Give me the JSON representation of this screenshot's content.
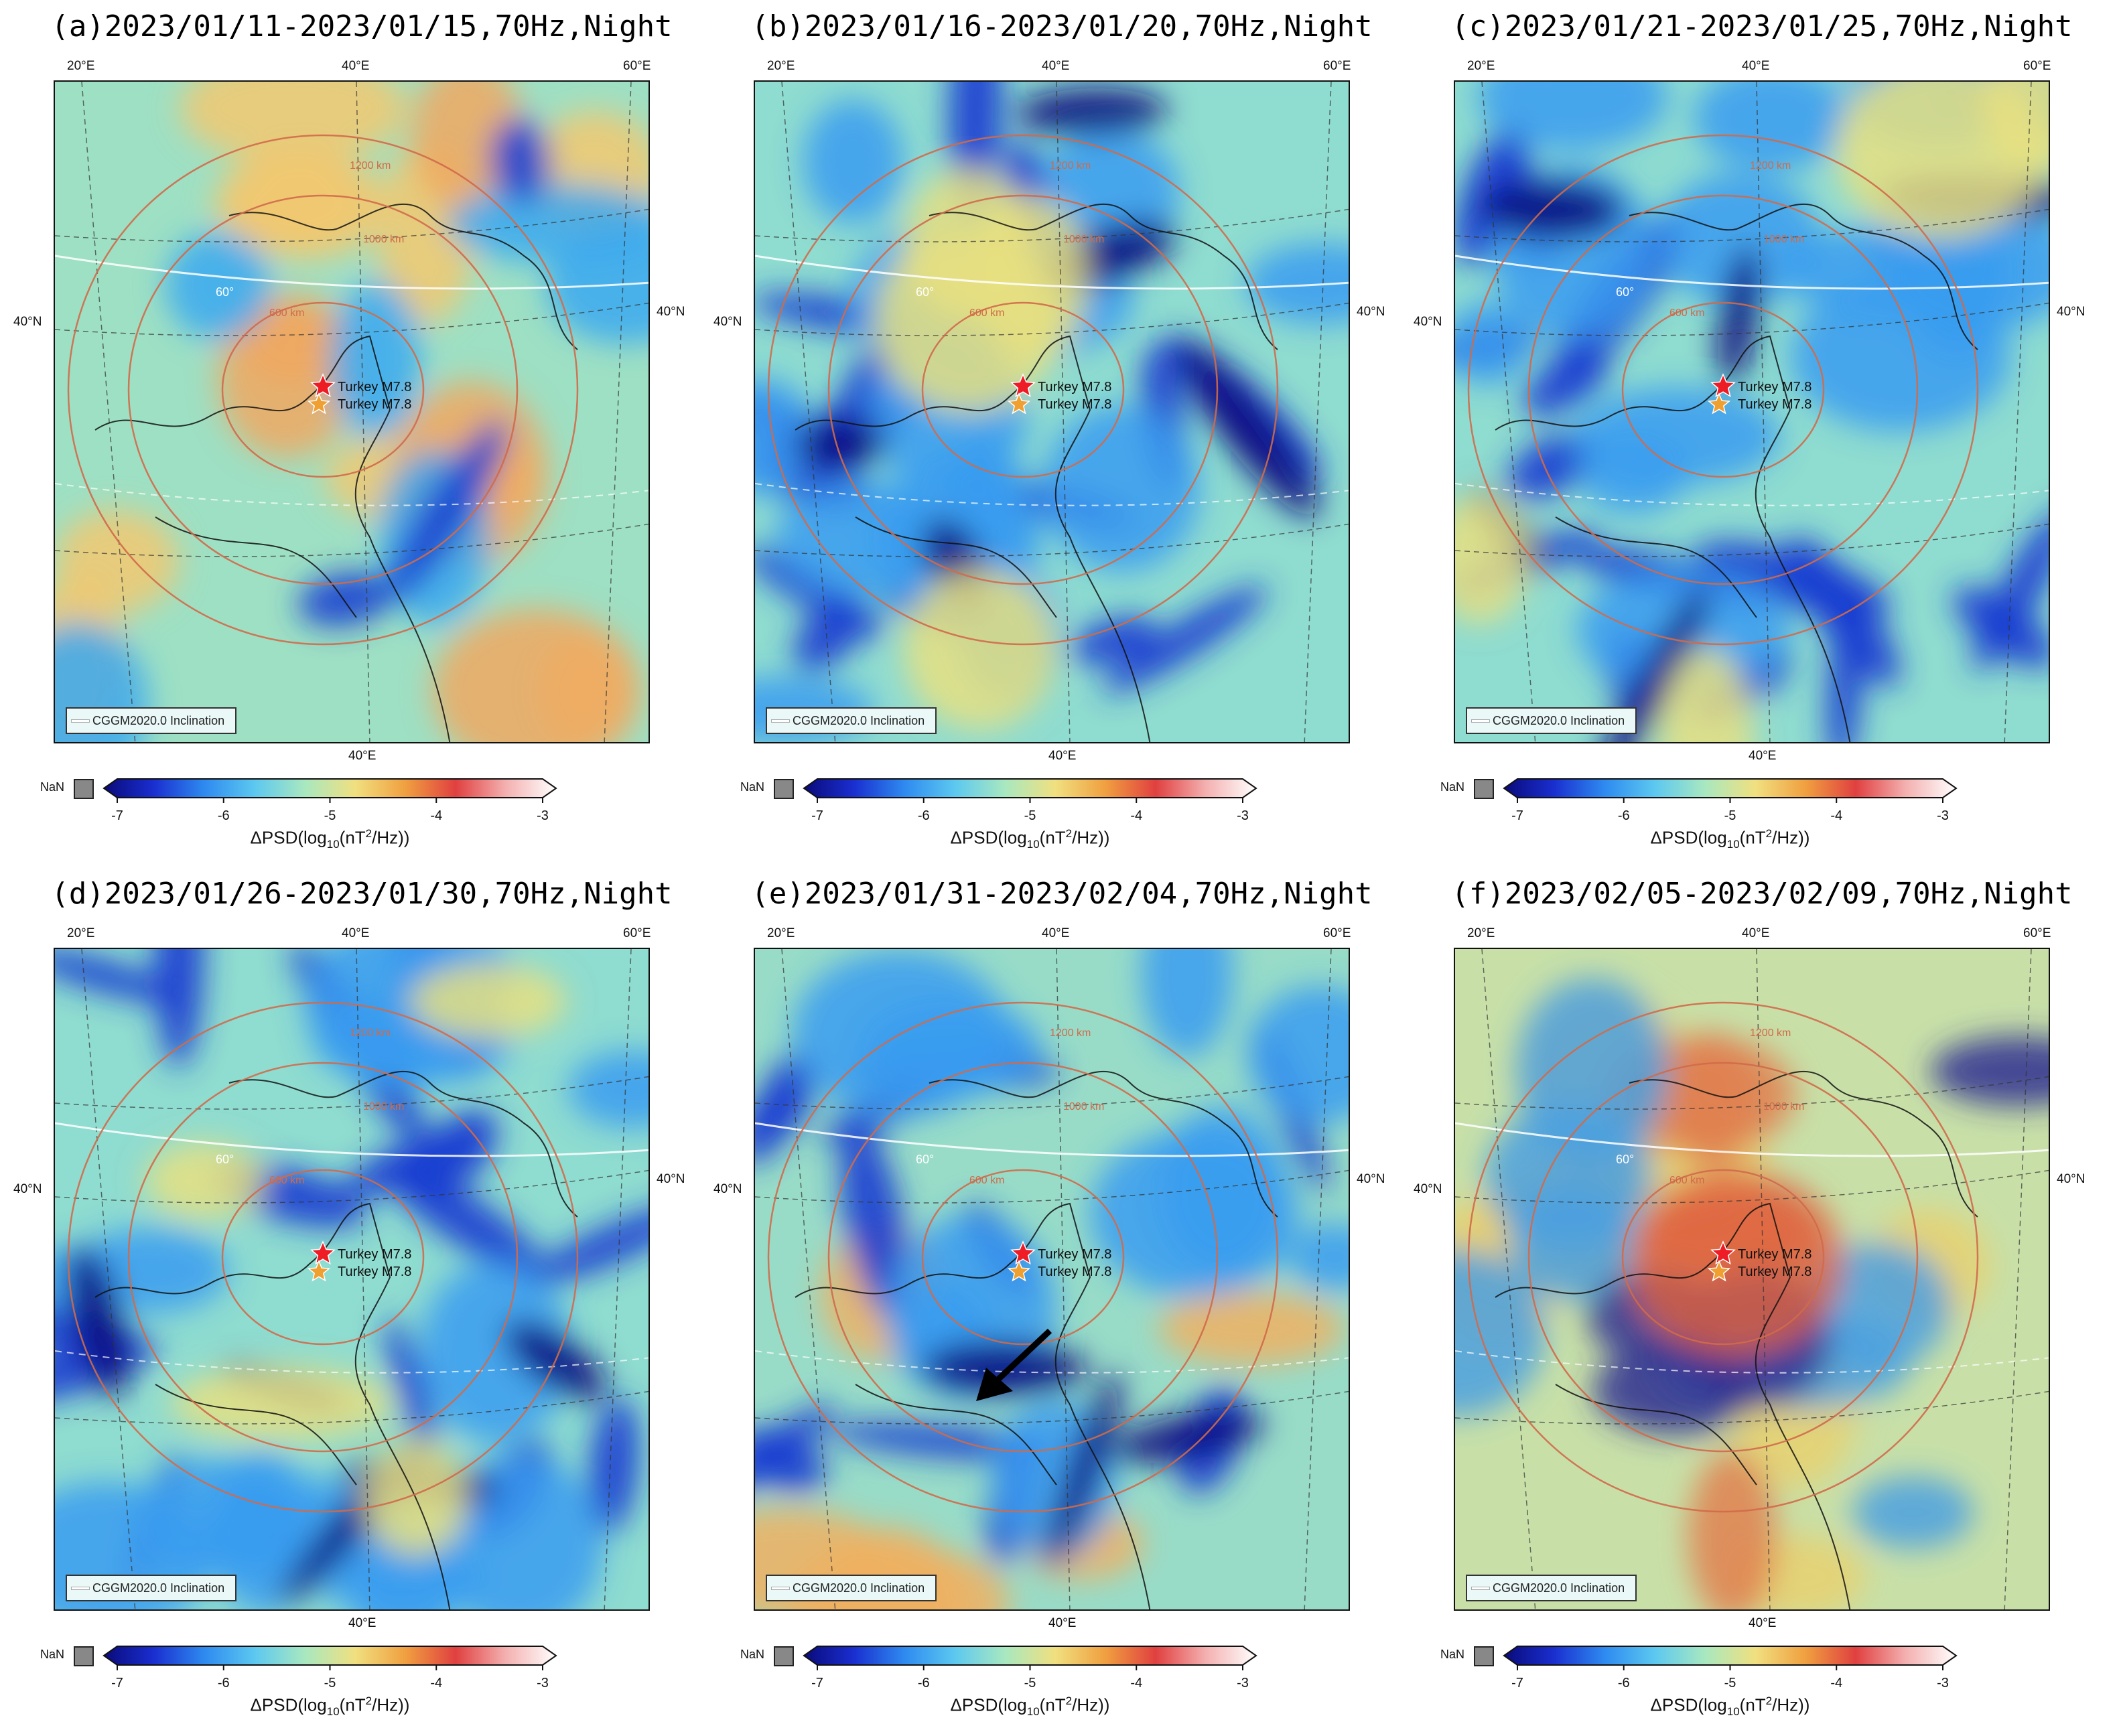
{
  "panels": [
    {
      "id": "a",
      "title": "(a)2023/01/11-2023/01/15,70Hz,Night",
      "mood": "warm"
    },
    {
      "id": "b",
      "title": "(b)2023/01/16-2023/01/20,70Hz,Night",
      "mood": "blue"
    },
    {
      "id": "c",
      "title": "(c)2023/01/21-2023/01/25,70Hz,Night",
      "mood": "blue"
    },
    {
      "id": "d",
      "title": "(d)2023/01/26-2023/01/30,70Hz,Night",
      "mood": "blue"
    },
    {
      "id": "e",
      "title": "(e)2023/01/31-2023/02/04,70Hz,Night",
      "mood": "mixed",
      "arrow": true
    },
    {
      "id": "f",
      "title": "(f)2023/02/05-2023/02/09,70Hz,Night",
      "mood": "hot"
    }
  ],
  "axis_labels": {
    "lon_20": "20°E",
    "lon_40": "40°E",
    "lon_60": "60°E",
    "lat_40": "40°N"
  },
  "map_labels": {
    "quake_labels": [
      "Turkey M7.8",
      "Turkey M7.8"
    ],
    "ring_labels": [
      "600 km",
      "1000 km",
      "1200 km"
    ],
    "inclination_value": "60°",
    "legend": "CGGM2020.0 Inclination"
  },
  "colorbar": {
    "nan_label": "NaN",
    "ticks": [
      "-7",
      "-6",
      "-5",
      "-4",
      "-3"
    ],
    "label_main": "ΔPSD(log",
    "label_sub": "10",
    "label_mid": "(nT",
    "label_sup": "2",
    "label_end": "/Hz))",
    "colors": [
      "#0a0a7a",
      "#1a2fd0",
      "#2e8af0",
      "#5cc8f0",
      "#a8e8c0",
      "#f0e080",
      "#f0a040",
      "#e04040",
      "#f4b0b0",
      "#ffffff"
    ]
  },
  "markers": {
    "star_main": "#ee1c25",
    "star_second": "#f0a030",
    "ring_color": "#d06a4a",
    "arrow_color": "#000000"
  }
}
